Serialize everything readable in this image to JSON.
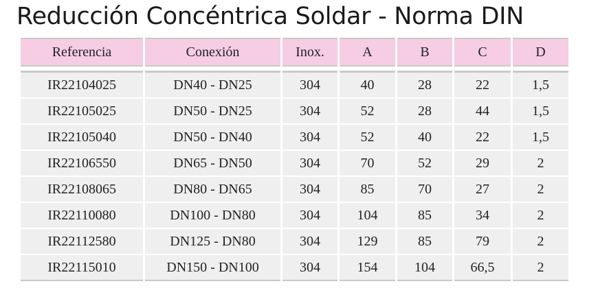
{
  "title": "Reducción Concéntrica Soldar - Norma DIN",
  "table": {
    "headers": [
      "Referencia",
      "Conexión",
      "Inox.",
      "A",
      "B",
      "C",
      "D"
    ],
    "rows": [
      [
        "IR22104025",
        "DN40 - DN25",
        "304",
        "40",
        "28",
        "22",
        "1,5"
      ],
      [
        "IR22105025",
        "DN50 - DN25",
        "304",
        "52",
        "28",
        "44",
        "1,5"
      ],
      [
        "IR22105040",
        "DN50 - DN40",
        "304",
        "52",
        "40",
        "22",
        "1,5"
      ],
      [
        "IR22106550",
        "DN65 - DN50",
        "304",
        "70",
        "52",
        "29",
        "2"
      ],
      [
        "IR22108065",
        "DN80 - DN65",
        "304",
        "85",
        "70",
        "27",
        "2"
      ],
      [
        "IR22110080",
        "DN100 - DN80",
        "304",
        "104",
        "85",
        "34",
        "2"
      ],
      [
        "IR22112580",
        "DN125 - DN80",
        "304",
        "129",
        "85",
        "79",
        "2"
      ],
      [
        "IR22115010",
        "DN150 - DN100",
        "304",
        "154",
        "104",
        "66,5",
        "2"
      ]
    ]
  },
  "colors": {
    "header_background": "#f6cde3",
    "row_background": "#efefef",
    "rule": "#c9c9c9"
  }
}
